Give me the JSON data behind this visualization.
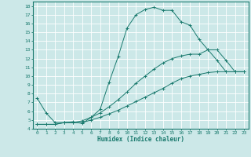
{
  "xlabel": "Humidex (Indice chaleur)",
  "bg_color": "#cce8e8",
  "grid_color": "#ffffff",
  "line_color": "#1a7a6e",
  "xlim": [
    -0.5,
    23.5
  ],
  "ylim": [
    4,
    18.5
  ],
  "yticks": [
    4,
    5,
    6,
    7,
    8,
    9,
    10,
    11,
    12,
    13,
    14,
    15,
    16,
    17,
    18
  ],
  "xticks": [
    0,
    1,
    2,
    3,
    4,
    5,
    6,
    7,
    8,
    9,
    10,
    11,
    12,
    13,
    14,
    15,
    16,
    17,
    18,
    19,
    20,
    21,
    22,
    23
  ],
  "series": [
    {
      "x": [
        0,
        1,
        2,
        3,
        4,
        5,
        6,
        7,
        8,
        9,
        10,
        11,
        12,
        13,
        14,
        15,
        16,
        17,
        18,
        19,
        20,
        21,
        22,
        23
      ],
      "y": [
        7.5,
        5.8,
        4.7,
        4.7,
        4.8,
        4.6,
        5.3,
        6.2,
        9.3,
        12.2,
        15.5,
        17.0,
        17.6,
        17.85,
        17.5,
        17.5,
        16.2,
        15.8,
        14.2,
        13.0,
        11.8,
        10.5,
        10.5,
        10.5
      ]
    },
    {
      "x": [
        0,
        1,
        2,
        3,
        4,
        5,
        6,
        7,
        8,
        9,
        10,
        11,
        12,
        13,
        14,
        15,
        16,
        17,
        18,
        19,
        20,
        21,
        22,
        23
      ],
      "y": [
        4.5,
        4.5,
        4.5,
        4.7,
        4.7,
        4.7,
        5.0,
        5.3,
        5.7,
        6.1,
        6.6,
        7.1,
        7.6,
        8.1,
        8.6,
        9.2,
        9.7,
        10.0,
        10.2,
        10.4,
        10.5,
        10.5,
        10.5,
        10.5
      ]
    },
    {
      "x": [
        0,
        1,
        2,
        3,
        4,
        5,
        6,
        7,
        8,
        9,
        10,
        11,
        12,
        13,
        14,
        15,
        16,
        17,
        18,
        19,
        20,
        21,
        22,
        23
      ],
      "y": [
        4.5,
        4.5,
        4.5,
        4.7,
        4.7,
        4.9,
        5.3,
        5.8,
        6.5,
        7.3,
        8.2,
        9.2,
        10.0,
        10.8,
        11.5,
        12.0,
        12.3,
        12.5,
        12.5,
        13.0,
        13.0,
        11.8,
        10.5,
        10.5
      ]
    }
  ]
}
